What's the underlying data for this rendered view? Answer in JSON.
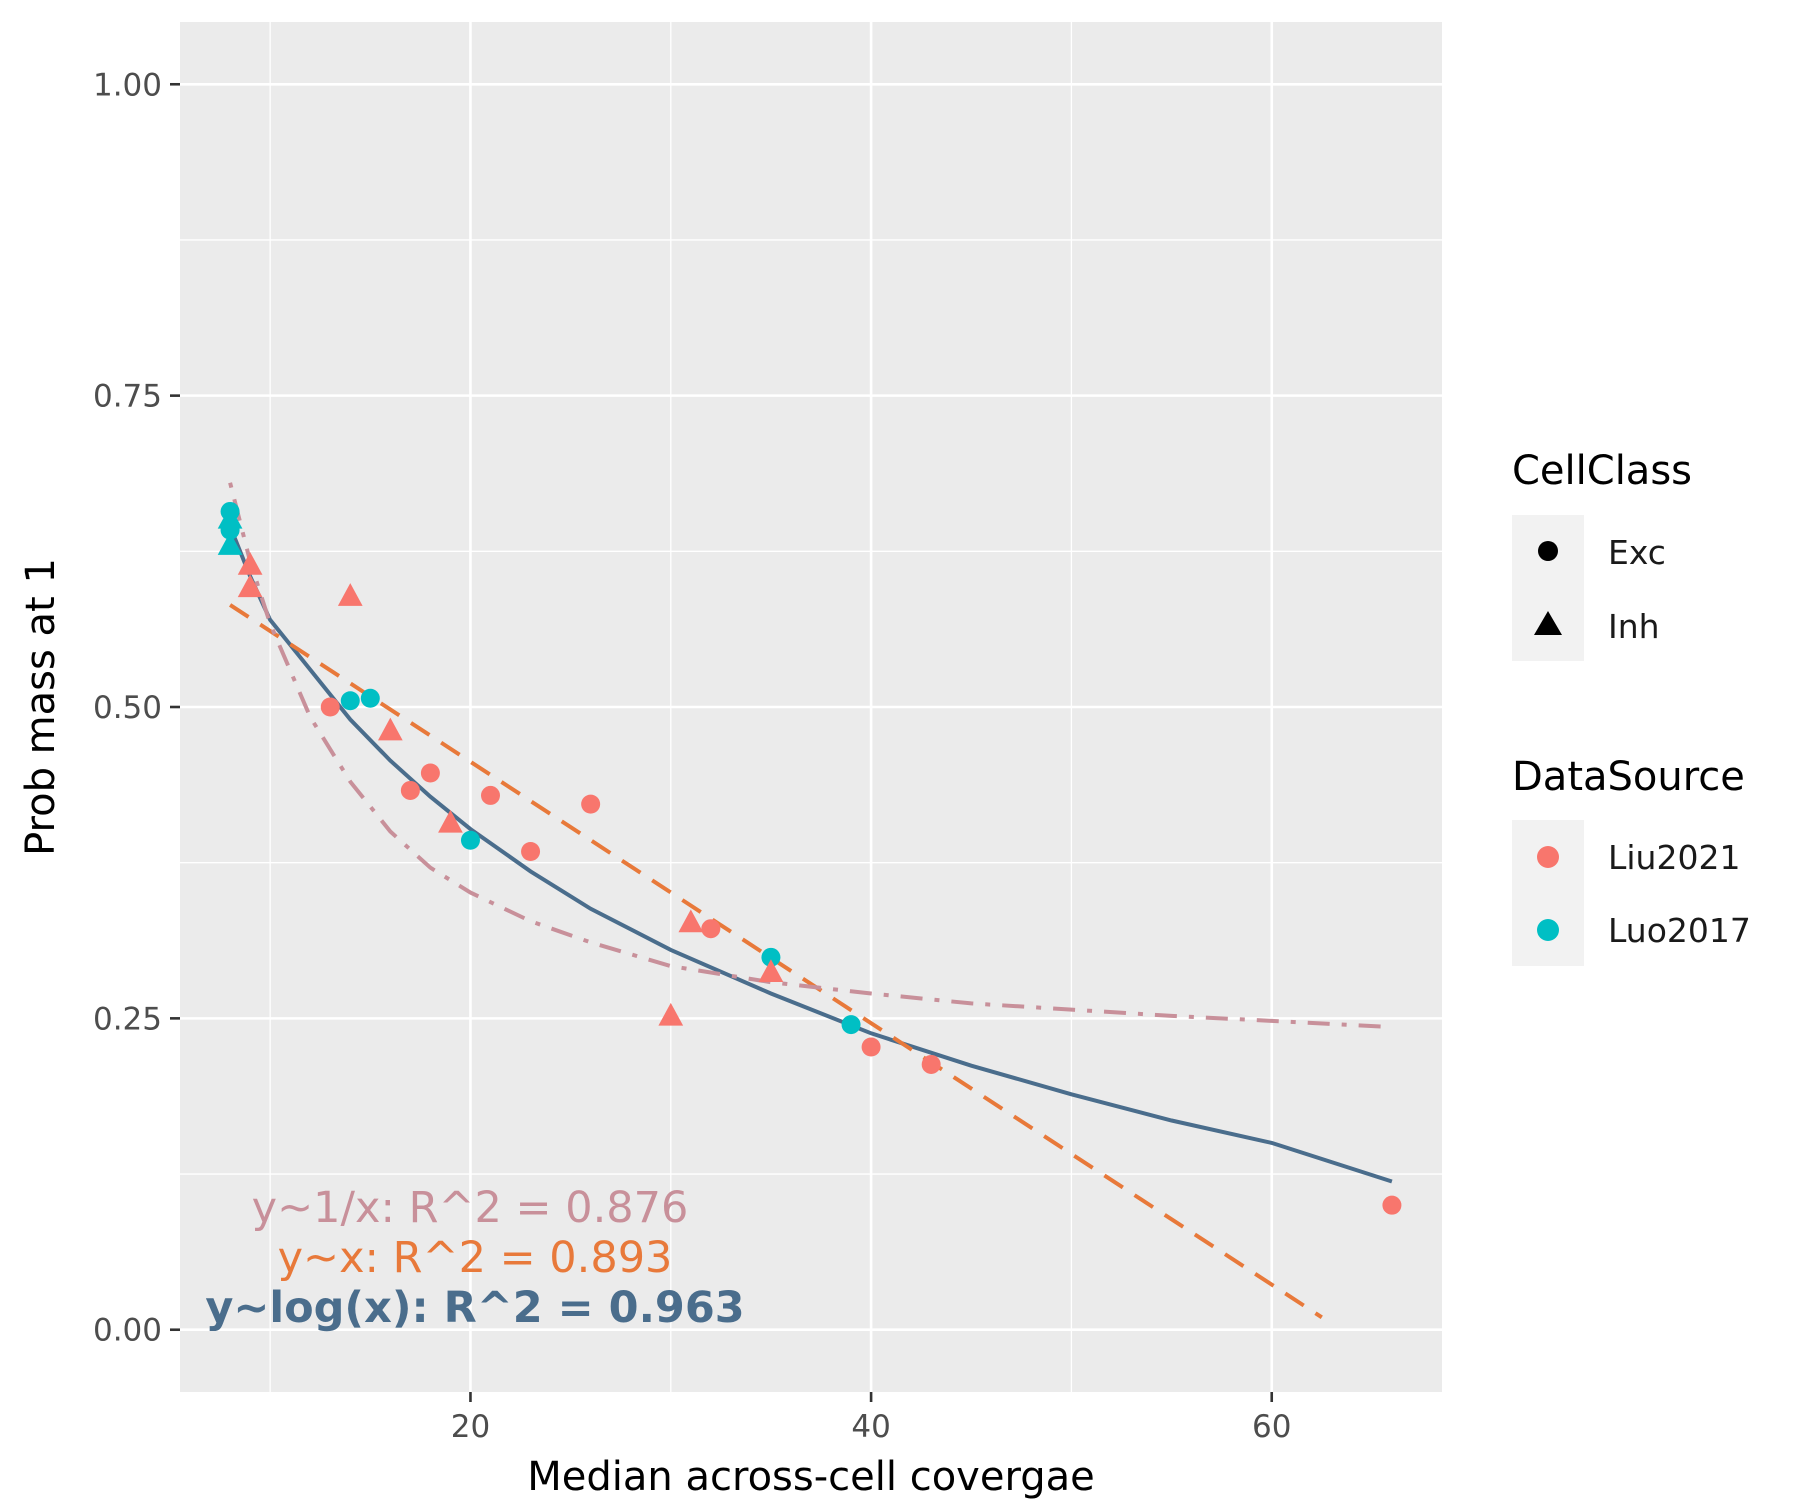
{
  "chart_data": {
    "type": "scatter",
    "xlabel": "Median across-cell covergae",
    "ylabel": "Prob mass at 1",
    "xlim": [
      5.5,
      68.5
    ],
    "ylim": [
      -0.05,
      1.05
    ],
    "x_ticks": [
      20,
      40,
      60
    ],
    "y_ticks": [
      0.0,
      0.25,
      0.5,
      0.75,
      1.0
    ],
    "y_tick_labels": [
      "0.00",
      "0.25",
      "0.50",
      "0.75",
      "1.00"
    ],
    "grid": true,
    "legend_position": "right",
    "legends": [
      {
        "title": "CellClass",
        "entries": [
          {
            "label": "Exc",
            "shape": "circle"
          },
          {
            "label": "Inh",
            "shape": "triangle"
          }
        ]
      },
      {
        "title": "DataSource",
        "entries": [
          {
            "label": "Liu2021",
            "color": "#F8766D"
          },
          {
            "label": "Luo2017",
            "color": "#00BFC4"
          }
        ]
      }
    ],
    "colors": {
      "Liu2021": "#F8766D",
      "Luo2017": "#00BFC4",
      "fit_log": "#4A6D8C",
      "fit_linear": "#E8793A",
      "fit_reciprocal": "#C8909A"
    },
    "points": [
      {
        "x": 8,
        "y": 0.657,
        "shape": "circle",
        "source": "Luo2017"
      },
      {
        "x": 8,
        "y": 0.642,
        "shape": "circle",
        "source": "Luo2017"
      },
      {
        "x": 8,
        "y": 0.651,
        "shape": "triangle",
        "source": "Luo2017"
      },
      {
        "x": 8,
        "y": 0.63,
        "shape": "triangle",
        "source": "Luo2017"
      },
      {
        "x": 9,
        "y": 0.614,
        "shape": "triangle",
        "source": "Liu2021"
      },
      {
        "x": 9,
        "y": 0.596,
        "shape": "triangle",
        "source": "Liu2021"
      },
      {
        "x": 13,
        "y": 0.5,
        "shape": "circle",
        "source": "Liu2021"
      },
      {
        "x": 14,
        "y": 0.589,
        "shape": "triangle",
        "source": "Liu2021"
      },
      {
        "x": 14,
        "y": 0.505,
        "shape": "circle",
        "source": "Luo2017"
      },
      {
        "x": 15,
        "y": 0.507,
        "shape": "circle",
        "source": "Luo2017"
      },
      {
        "x": 16,
        "y": 0.481,
        "shape": "triangle",
        "source": "Liu2021"
      },
      {
        "x": 17,
        "y": 0.433,
        "shape": "circle",
        "source": "Liu2021"
      },
      {
        "x": 18,
        "y": 0.447,
        "shape": "circle",
        "source": "Liu2021"
      },
      {
        "x": 19,
        "y": 0.407,
        "shape": "triangle",
        "source": "Liu2021"
      },
      {
        "x": 20,
        "y": 0.393,
        "shape": "circle",
        "source": "Luo2017"
      },
      {
        "x": 21,
        "y": 0.429,
        "shape": "circle",
        "source": "Liu2021"
      },
      {
        "x": 23,
        "y": 0.384,
        "shape": "circle",
        "source": "Liu2021"
      },
      {
        "x": 26,
        "y": 0.422,
        "shape": "circle",
        "source": "Liu2021"
      },
      {
        "x": 30,
        "y": 0.252,
        "shape": "triangle",
        "source": "Liu2021"
      },
      {
        "x": 31,
        "y": 0.327,
        "shape": "triangle",
        "source": "Liu2021"
      },
      {
        "x": 32,
        "y": 0.322,
        "shape": "circle",
        "source": "Liu2021"
      },
      {
        "x": 35,
        "y": 0.299,
        "shape": "circle",
        "source": "Luo2017"
      },
      {
        "x": 35,
        "y": 0.287,
        "shape": "triangle",
        "source": "Liu2021"
      },
      {
        "x": 39,
        "y": 0.245,
        "shape": "circle",
        "source": "Luo2017"
      },
      {
        "x": 40,
        "y": 0.227,
        "shape": "circle",
        "source": "Liu2021"
      },
      {
        "x": 43,
        "y": 0.213,
        "shape": "circle",
        "source": "Liu2021"
      },
      {
        "x": 66,
        "y": 0.1,
        "shape": "circle",
        "source": "Liu2021"
      }
    ],
    "fits": [
      {
        "kind": "log",
        "style": "solid",
        "color": "#4A6D8C",
        "x": [
          8,
          9,
          10,
          12,
          14,
          16,
          18,
          20,
          23,
          26,
          30,
          35,
          40,
          45,
          50,
          55,
          60,
          66
        ],
        "y": [
          0.645,
          0.605,
          0.57,
          0.53,
          0.49,
          0.457,
          0.428,
          0.402,
          0.368,
          0.338,
          0.305,
          0.27,
          0.238,
          0.212,
          0.189,
          0.168,
          0.15,
          0.119
        ]
      },
      {
        "kind": "linear",
        "style": "dashed",
        "color": "#E8793A",
        "x": [
          8,
          62.5
        ],
        "y": [
          0.582,
          0.01
        ]
      },
      {
        "kind": "reciprocal",
        "style": "dotdash",
        "color": "#C8909A",
        "x": [
          8,
          9,
          10,
          12,
          14,
          16,
          18,
          20,
          23,
          26,
          30,
          35,
          40,
          45,
          50,
          55,
          60,
          66
        ],
        "y": [
          0.68,
          0.617,
          0.567,
          0.492,
          0.44,
          0.4,
          0.371,
          0.351,
          0.328,
          0.311,
          0.292,
          0.279,
          0.27,
          0.262,
          0.257,
          0.252,
          0.248,
          0.243
        ]
      }
    ],
    "annotations": [
      {
        "text": "y~1/x: R^2 = 0.876",
        "color": "#C8909A",
        "bold": false
      },
      {
        "text": "y~x: R^2 = 0.893",
        "color": "#E8793A",
        "bold": false
      },
      {
        "text": "y~log(x): R^2 = 0.963",
        "color": "#4A6D8C",
        "bold": true
      }
    ]
  }
}
